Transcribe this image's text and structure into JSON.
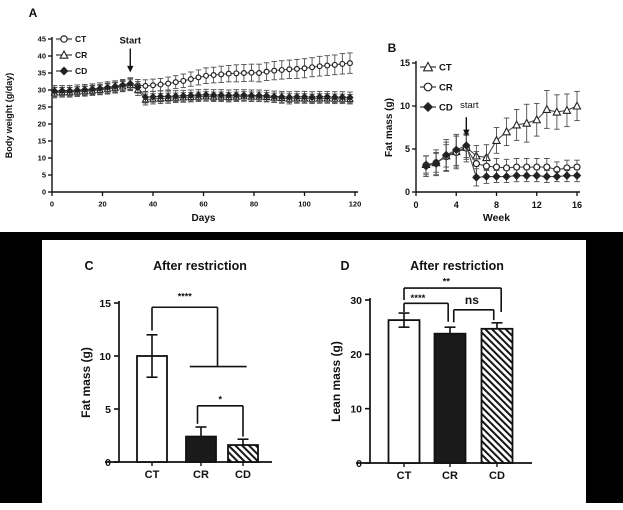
{
  "figure": {
    "background": "#ffffff",
    "matte_color": "#000000",
    "ink_color": "#111111",
    "line_color": "#4d4d4d"
  },
  "chart_data": [
    {
      "id": "A",
      "panel_label": "A",
      "type": "line",
      "xlabel": "Days",
      "ylabel": "Body weight (g/day)",
      "xlim": [
        0,
        120
      ],
      "xticks": [
        0,
        20,
        40,
        60,
        80,
        100,
        120
      ],
      "ylim": [
        0,
        45
      ],
      "yticks": [
        0,
        5,
        10,
        15,
        20,
        25,
        30,
        35,
        40,
        45
      ],
      "legend": [
        {
          "name": "CT",
          "marker": "circle-open"
        },
        {
          "name": "CR",
          "marker": "triangle-open"
        },
        {
          "name": "CD",
          "marker": "diamond-filled"
        }
      ],
      "annotation": {
        "text": "Start",
        "x": 31,
        "text_value": 44.6,
        "from_value": 42.2,
        "to_value": 35.2,
        "bold": true
      },
      "x": [
        1,
        4,
        7,
        10,
        13,
        16,
        19,
        22,
        25,
        28,
        31,
        34,
        37,
        40,
        43,
        46,
        49,
        52,
        55,
        58,
        61,
        64,
        67,
        70,
        73,
        76,
        79,
        82,
        85,
        88,
        91,
        94,
        97,
        100,
        103,
        106,
        109,
        112,
        115,
        118
      ],
      "series": [
        {
          "name": "CT",
          "marker": "circle-open",
          "values": [
            29.4,
            29.5,
            29.5,
            29.7,
            29.8,
            30.0,
            30.2,
            30.5,
            30.8,
            31.2,
            31.7,
            31.4,
            31.2,
            31.4,
            31.6,
            31.9,
            32.3,
            32.7,
            33.2,
            33.7,
            34.2,
            34.4,
            34.6,
            34.8,
            34.9,
            35.0,
            35.1,
            35.0,
            35.4,
            35.7,
            35.9,
            36.1,
            36.2,
            36.4,
            36.7,
            37.0,
            37.2,
            37.4,
            37.7,
            37.9
          ],
          "errors": [
            1.4,
            1.3,
            1.3,
            1.3,
            1.4,
            1.4,
            1.4,
            1.5,
            1.5,
            1.6,
            1.7,
            1.7,
            1.8,
            1.8,
            1.8,
            1.9,
            1.9,
            2.0,
            2.1,
            2.2,
            2.3,
            2.3,
            2.4,
            2.4,
            2.5,
            2.5,
            2.5,
            2.6,
            2.6,
            2.7,
            2.7,
            2.7,
            2.8,
            2.8,
            2.8,
            2.9,
            2.9,
            2.9,
            3.0,
            3.0
          ]
        },
        {
          "name": "CR",
          "marker": "triangle-open",
          "values": [
            29.2,
            29.3,
            29.3,
            29.5,
            29.6,
            29.8,
            30.0,
            30.3,
            30.6,
            31.0,
            31.4,
            30.0,
            27.2,
            27.4,
            27.5,
            27.6,
            27.7,
            27.8,
            27.9,
            28.0,
            28.1,
            28.0,
            28.0,
            27.9,
            28.0,
            28.1,
            28.0,
            28.0,
            27.9,
            27.7,
            27.6,
            27.4,
            27.5,
            27.5,
            27.4,
            27.5,
            27.5,
            27.4,
            27.4,
            27.3
          ],
          "errors": [
            1.5,
            1.4,
            1.4,
            1.4,
            1.4,
            1.4,
            1.4,
            1.5,
            1.5,
            1.5,
            1.6,
            1.6,
            1.6,
            1.5,
            1.5,
            1.5,
            1.4,
            1.4,
            1.4,
            1.4,
            1.4,
            1.4,
            1.4,
            1.4,
            1.4,
            1.4,
            1.4,
            1.4,
            1.4,
            1.4,
            1.5,
            1.5,
            1.4,
            1.4,
            1.4,
            1.4,
            1.4,
            1.4,
            1.4,
            1.4
          ]
        },
        {
          "name": "CD",
          "marker": "diamond-filled",
          "values": [
            29.7,
            29.8,
            29.8,
            30.0,
            30.1,
            30.3,
            30.5,
            30.8,
            31.1,
            31.5,
            31.9,
            30.8,
            27.9,
            28.0,
            28.1,
            28.1,
            28.2,
            28.3,
            28.4,
            28.5,
            28.6,
            28.5,
            28.5,
            28.4,
            28.5,
            28.5,
            28.4,
            28.4,
            28.3,
            28.1,
            28.0,
            27.9,
            28.0,
            28.0,
            27.9,
            28.0,
            28.0,
            27.9,
            27.9,
            27.8
          ],
          "errors": [
            1.6,
            1.5,
            1.5,
            1.5,
            1.5,
            1.5,
            1.6,
            1.6,
            1.6,
            1.6,
            1.7,
            1.7,
            1.7,
            1.6,
            1.6,
            1.6,
            1.6,
            1.6,
            1.6,
            1.6,
            1.6,
            1.6,
            1.6,
            1.6,
            1.6,
            1.6,
            1.6,
            1.6,
            1.6,
            1.6,
            1.6,
            1.6,
            1.6,
            1.6,
            1.6,
            1.6,
            1.6,
            1.6,
            1.6,
            1.6
          ]
        }
      ]
    },
    {
      "id": "B",
      "panel_label": "B",
      "type": "line",
      "xlabel": "Week",
      "ylabel": "Fat mass (g)",
      "xlim": [
        0,
        16
      ],
      "xticks": [
        0,
        4,
        8,
        12,
        16
      ],
      "ylim": [
        0,
        15
      ],
      "yticks": [
        0,
        5,
        10,
        15
      ],
      "legend": [
        {
          "name": "CT",
          "marker": "triangle-open"
        },
        {
          "name": "CR",
          "marker": "circle-open"
        },
        {
          "name": "CD",
          "marker": "diamond-filled"
        }
      ],
      "annotation": {
        "text": "start",
        "x": 5,
        "text_x": 5.3,
        "text_value": 10.1,
        "from_value": 8.7,
        "to_value": 6.5,
        "bold": false
      },
      "x": [
        1,
        2,
        3,
        4,
        5,
        6,
        7,
        8,
        9,
        10,
        11,
        12,
        13,
        14,
        15,
        16
      ],
      "series": [
        {
          "name": "CT",
          "marker": "triangle-open",
          "values": [
            3.2,
            3.4,
            4.2,
            4.7,
            5.2,
            4.2,
            4.0,
            6.0,
            7.0,
            7.8,
            8.0,
            8.4,
            9.6,
            9.3,
            9.5,
            10.0
          ],
          "errors": [
            1.0,
            1.1,
            1.3,
            1.8,
            1.4,
            1.2,
            1.5,
            1.5,
            1.6,
            1.8,
            2.2,
            1.9,
            2.2,
            2.0,
            1.9,
            1.7
          ]
        },
        {
          "name": "CR",
          "marker": "circle-open",
          "values": [
            3.1,
            3.4,
            4.1,
            4.6,
            5.1,
            3.3,
            3.0,
            2.9,
            2.8,
            2.9,
            2.9,
            2.9,
            2.9,
            2.6,
            2.8,
            2.9
          ],
          "errors": [
            1.1,
            1.5,
            1.7,
            1.9,
            1.6,
            1.4,
            1.2,
            1.0,
            1.0,
            1.0,
            1.0,
            1.0,
            1.0,
            0.9,
            0.9,
            0.8
          ]
        },
        {
          "name": "CD",
          "marker": "diamond-filled",
          "values": [
            3.0,
            3.3,
            4.3,
            4.9,
            5.4,
            1.7,
            1.8,
            1.8,
            1.8,
            1.9,
            1.9,
            1.9,
            1.8,
            1.8,
            1.9,
            1.9
          ],
          "errors": [
            1.2,
            1.3,
            1.8,
            1.8,
            1.4,
            1.0,
            0.8,
            0.7,
            0.7,
            0.7,
            0.7,
            0.7,
            0.7,
            0.6,
            0.7,
            0.7
          ]
        }
      ]
    },
    {
      "id": "C",
      "panel_label": "C",
      "type": "bar",
      "title": "After restriction",
      "ylabel": "Fat mass (g)",
      "categories": [
        "CT",
        "CR",
        "CD"
      ],
      "values": [
        10.0,
        2.4,
        1.6
      ],
      "errors": [
        2.0,
        0.9,
        0.55
      ],
      "bar_styles": [
        "open",
        "solid",
        "hatched"
      ],
      "ylim": [
        0,
        15
      ],
      "yticks": [
        0,
        5,
        10,
        15
      ],
      "significance": [
        {
          "label": "****",
          "label_x": 0.72,
          "label_y": 15.6,
          "font": 9,
          "segments": [
            [
              0,
              12.4,
              0,
              14.6
            ],
            [
              0,
              14.6,
              1.44,
              14.6
            ],
            [
              1.44,
              14.6,
              1.44,
              9.0
            ],
            [
              0.83,
              9.0,
              2.08,
              9.0
            ]
          ]
        },
        {
          "label": "*",
          "label_x": 1.5,
          "label_y": 5.9,
          "font": 9,
          "segments": [
            [
              1,
              3.6,
              1,
              5.3
            ],
            [
              1,
              5.3,
              2,
              5.3
            ],
            [
              2,
              5.3,
              2,
              2.4
            ]
          ]
        }
      ]
    },
    {
      "id": "D",
      "panel_label": "D",
      "type": "bar",
      "title": "After restriction",
      "ylabel": "Lean mass (g)",
      "categories": [
        "CT",
        "CR",
        "CD"
      ],
      "values": [
        26.3,
        23.8,
        24.7
      ],
      "errors": [
        1.3,
        1.2,
        1.1
      ],
      "bar_styles": [
        "open",
        "solid",
        "hatched"
      ],
      "ylim": [
        0,
        30
      ],
      "yticks": [
        0,
        10,
        20,
        30
      ],
      "significance": [
        {
          "label": "****",
          "label_x": 0.3,
          "label_y": 30.4,
          "font": 9.5,
          "segments": [
            [
              0,
              27.8,
              0,
              29.4
            ],
            [
              0,
              29.4,
              0.95,
              29.4
            ],
            [
              0.95,
              29.4,
              0.95,
              26.0
            ]
          ]
        },
        {
          "label": "ns",
          "label_x": 1.46,
          "label_y": 29.8,
          "font": 12,
          "segments": [
            [
              1.07,
              25.9,
              1.07,
              28.2
            ],
            [
              1.07,
              28.2,
              1.93,
              28.2
            ],
            [
              1.93,
              28.2,
              1.93,
              26.3
            ]
          ]
        },
        {
          "label": "**",
          "label_x": 0.91,
          "label_y": 33.4,
          "font": 9.5,
          "segments": [
            [
              0,
              30.0,
              0,
              32.2
            ],
            [
              0,
              32.2,
              2.09,
              32.2
            ],
            [
              2.09,
              32.2,
              2.09,
              27.8
            ]
          ]
        }
      ]
    }
  ]
}
